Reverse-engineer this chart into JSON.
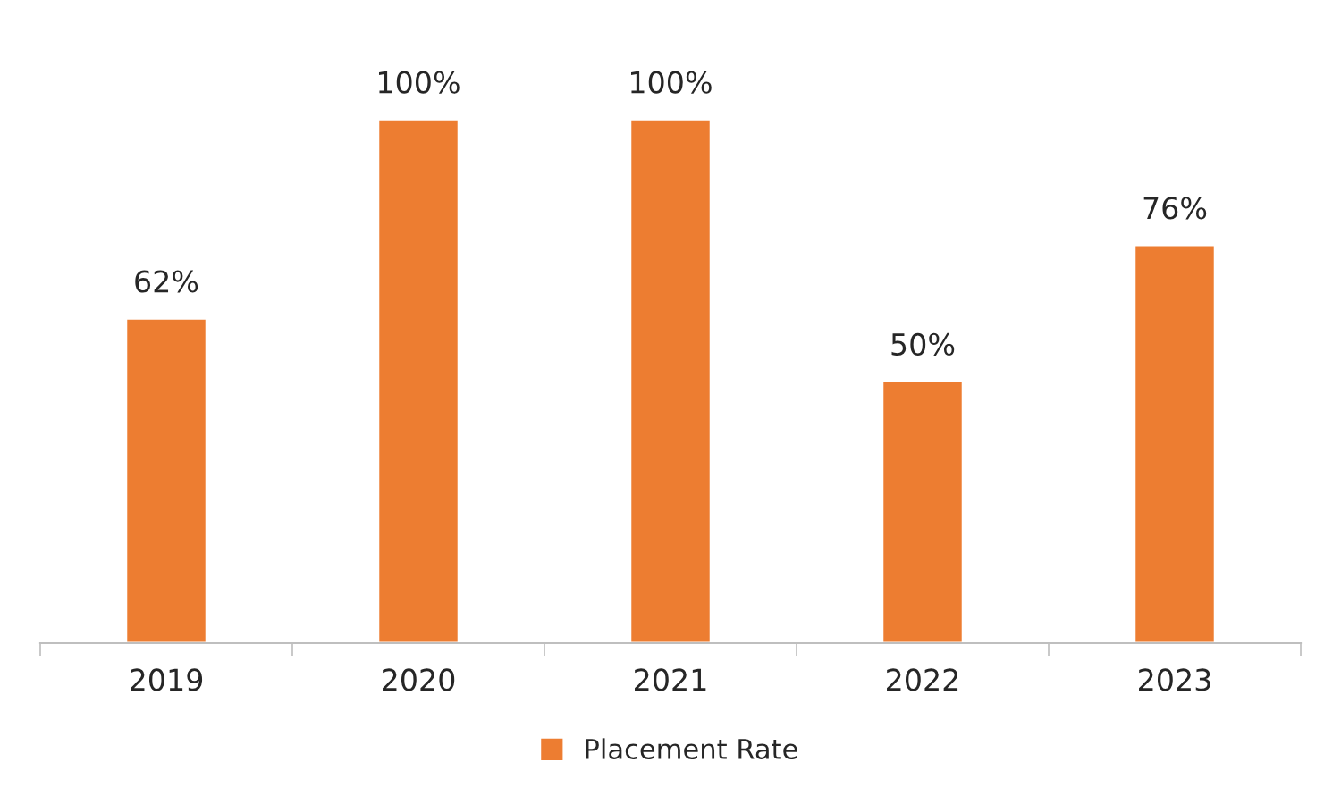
{
  "chart_data": {
    "type": "bar",
    "categories": [
      "2019",
      "2020",
      "2021",
      "2022",
      "2023"
    ],
    "series": [
      {
        "name": "Placement Rate",
        "color": "#ed7d31",
        "values": [
          62,
          100,
          100,
          50,
          76
        ],
        "value_labels": [
          "62%",
          "100%",
          "100%",
          "50%",
          "76%"
        ]
      }
    ],
    "legend": "bottom"
  }
}
